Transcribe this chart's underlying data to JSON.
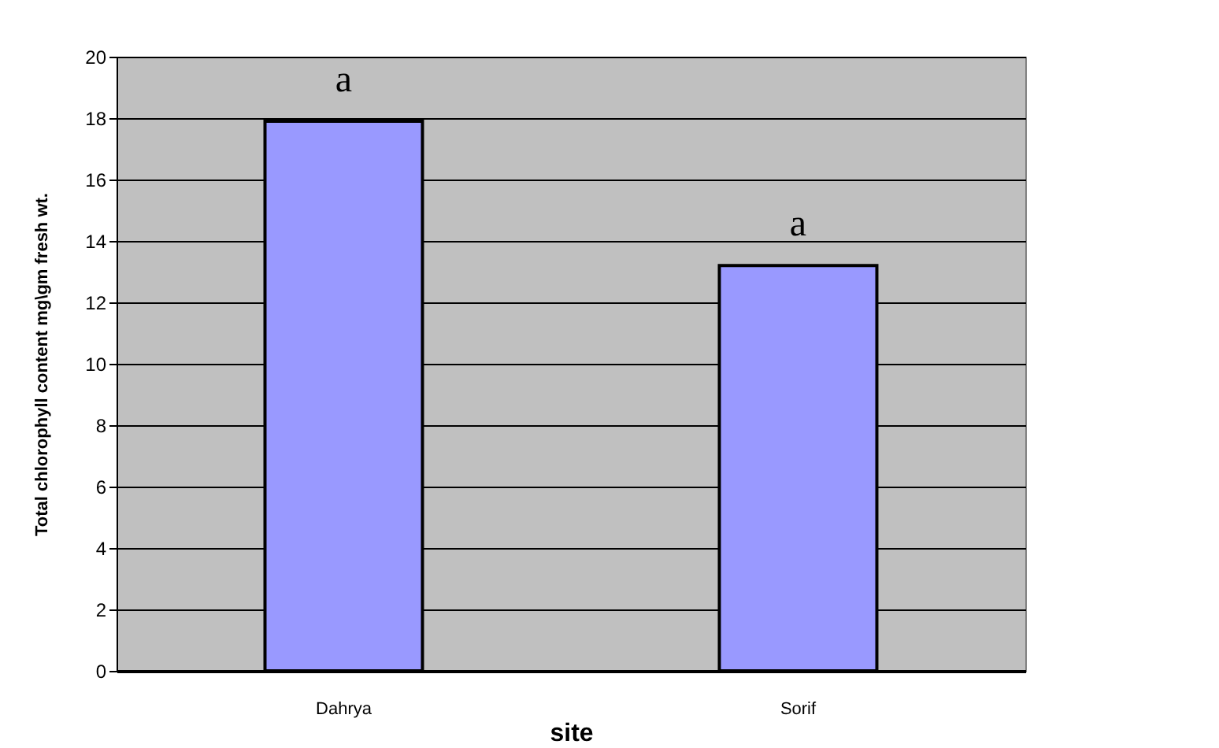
{
  "chart_data": {
    "type": "bar",
    "xlabel": "site",
    "ylabel": "Total chlorophyll content mg\\gm fresh wt.",
    "categories": [
      "Dahrya",
      "Sorif"
    ],
    "values": [
      17.9,
      13.2
    ],
    "color": "#9999ff",
    "ylim": [
      0,
      20
    ],
    "yticks": [
      0,
      2,
      4,
      6,
      8,
      10,
      12,
      14,
      16,
      18,
      20
    ],
    "grid": "y",
    "annotations": [
      "a",
      "a"
    ]
  }
}
